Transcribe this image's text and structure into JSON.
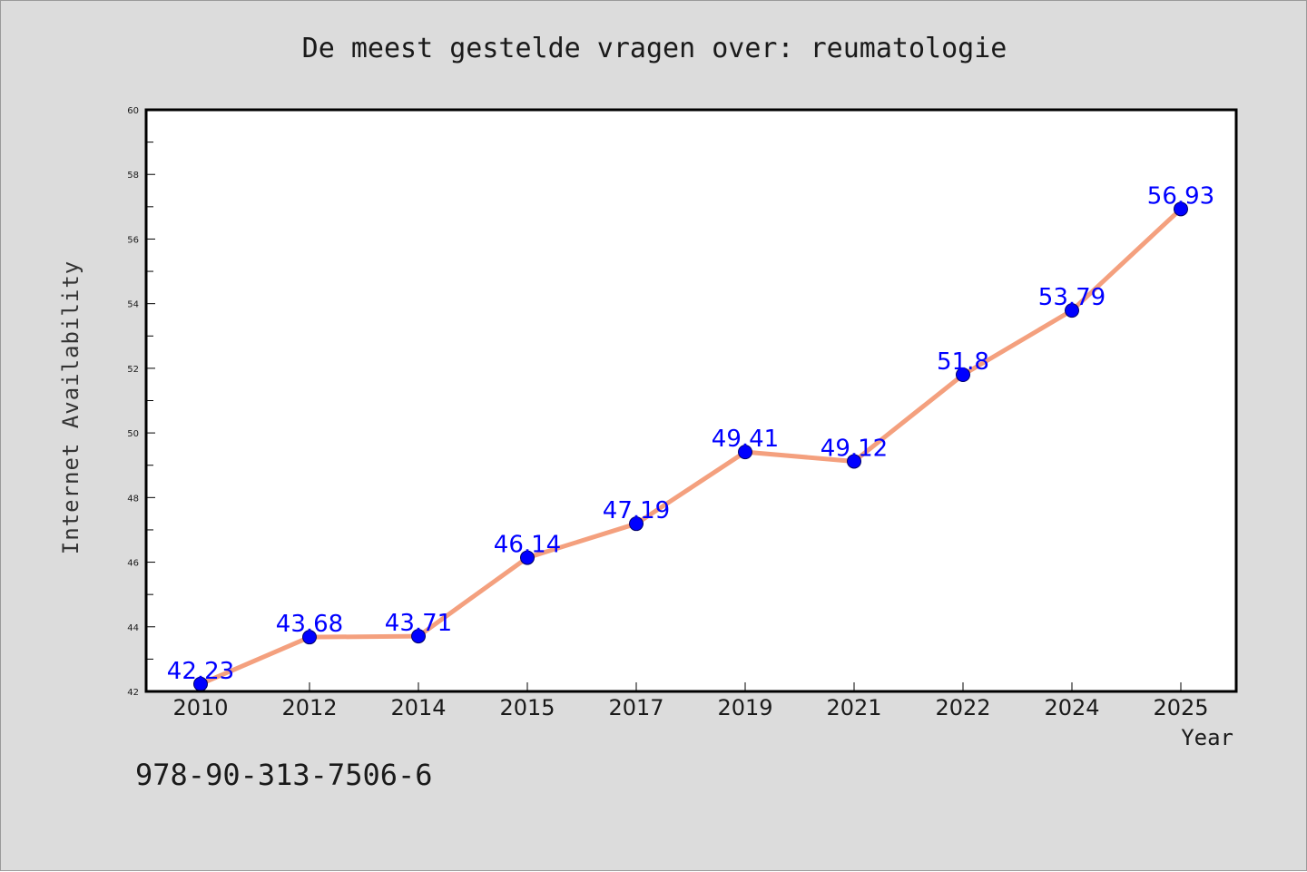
{
  "chart_data": {
    "type": "line",
    "title": "De meest gestelde vragen over: reumatologie",
    "xlabel": "Year",
    "ylabel": "Internet Availability",
    "categories": [
      "2010",
      "2012",
      "2014",
      "2015",
      "2017",
      "2019",
      "2021",
      "2022",
      "2024",
      "2025"
    ],
    "values": [
      42.23,
      43.68,
      43.71,
      46.14,
      47.19,
      49.41,
      49.12,
      51.8,
      53.79,
      56.93
    ],
    "data_labels": [
      "42.23",
      "43.68",
      "43.71",
      "46.14",
      "47.19",
      "49.41",
      "49.12",
      "51.8",
      "53.79",
      "56.93"
    ],
    "ylim": [
      42,
      60
    ],
    "yticks": [
      "42",
      "44",
      "46",
      "48",
      "50",
      "52",
      "54",
      "56",
      "58",
      "60"
    ],
    "grid": false,
    "line_color": "#f4a07e",
    "marker_color": "#0000ff",
    "label_color": "#0000ff"
  },
  "footer_text": "978-90-313-7506-6"
}
